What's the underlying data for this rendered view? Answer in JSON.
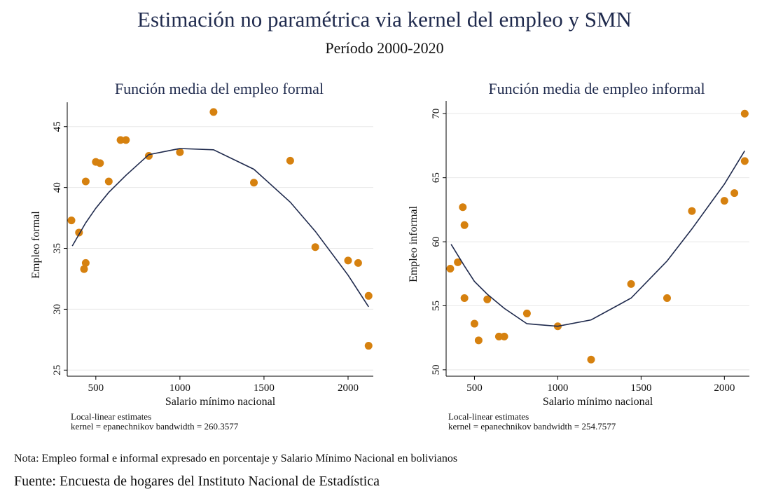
{
  "header": {
    "title": "Estimación no paramétrica via kernel del empleo y SMN",
    "subtitle": "Período 2000-2020"
  },
  "footer": {
    "note": "Nota: Empleo formal e informal expresado en porcentaje y Salario Mínimo Nacional en bolivianos",
    "source": "Fuente: Encuesta de hogares del Instituto Nacional de Estadística"
  },
  "colors": {
    "points": "#d6810f",
    "fit_line": "#1f2a4d",
    "grid": "#e8e8e8",
    "axis": "#000000"
  },
  "chart_data": [
    {
      "type": "scatter",
      "title": "Función media del empleo formal",
      "xlabel": "Salario mínimo nacional",
      "ylabel": "Empleo formal",
      "xlim": [
        330,
        2150
      ],
      "ylim": [
        24.5,
        47
      ],
      "xticks": [
        500,
        1000,
        1500,
        2000
      ],
      "xtick_labels": [
        "500",
        "1000",
        "1500",
        "2000"
      ],
      "yticks": [
        25,
        30,
        35,
        40,
        45
      ],
      "ytick_labels": [
        "25",
        "30",
        "35",
        "40",
        "45"
      ],
      "grid": true,
      "notes": [
        "Local-linear estimates",
        "kernel = epanechnikov bandwidth = 260.3577"
      ],
      "points": [
        {
          "x": 355,
          "y": 37.3
        },
        {
          "x": 400,
          "y": 36.3
        },
        {
          "x": 430,
          "y": 33.3
        },
        {
          "x": 440,
          "y": 33.8
        },
        {
          "x": 440,
          "y": 40.5
        },
        {
          "x": 500,
          "y": 42.1
        },
        {
          "x": 525,
          "y": 42.0
        },
        {
          "x": 577,
          "y": 40.5
        },
        {
          "x": 647,
          "y": 43.9
        },
        {
          "x": 679,
          "y": 43.9
        },
        {
          "x": 815,
          "y": 42.6
        },
        {
          "x": 1000,
          "y": 42.9
        },
        {
          "x": 1200,
          "y": 46.2
        },
        {
          "x": 1440,
          "y": 40.4
        },
        {
          "x": 1656,
          "y": 42.2
        },
        {
          "x": 1805,
          "y": 35.1
        },
        {
          "x": 2000,
          "y": 34.0
        },
        {
          "x": 2060,
          "y": 33.8
        },
        {
          "x": 2122,
          "y": 31.1
        },
        {
          "x": 2122,
          "y": 27.0
        }
      ],
      "fit": [
        {
          "x": 360,
          "y": 35.2
        },
        {
          "x": 440,
          "y": 37.1
        },
        {
          "x": 500,
          "y": 38.3
        },
        {
          "x": 577,
          "y": 39.6
        },
        {
          "x": 679,
          "y": 41.0
        },
        {
          "x": 815,
          "y": 42.7
        },
        {
          "x": 1000,
          "y": 43.2
        },
        {
          "x": 1200,
          "y": 43.1
        },
        {
          "x": 1440,
          "y": 41.5
        },
        {
          "x": 1656,
          "y": 38.8
        },
        {
          "x": 1805,
          "y": 36.4
        },
        {
          "x": 2000,
          "y": 32.8
        },
        {
          "x": 2122,
          "y": 30.2
        }
      ]
    },
    {
      "type": "scatter",
      "title": "Función media de empleo informal",
      "xlabel": "Salario mínimo nacional",
      "ylabel": "Empleo informal",
      "xlim": [
        330,
        2150
      ],
      "ylim": [
        49.5,
        71
      ],
      "xticks": [
        500,
        1000,
        1500,
        2000
      ],
      "xtick_labels": [
        "500",
        "1000",
        "1500",
        "2000"
      ],
      "yticks": [
        50,
        55,
        60,
        65,
        70
      ],
      "ytick_labels": [
        "50",
        "55",
        "60",
        "65",
        "70"
      ],
      "grid": true,
      "notes": [
        "Local-linear estimates",
        "kernel = epanechnikov bandwidth = 254.7577"
      ],
      "points": [
        {
          "x": 355,
          "y": 57.9
        },
        {
          "x": 400,
          "y": 58.4
        },
        {
          "x": 430,
          "y": 62.7
        },
        {
          "x": 440,
          "y": 61.3
        },
        {
          "x": 440,
          "y": 55.6
        },
        {
          "x": 500,
          "y": 53.6
        },
        {
          "x": 525,
          "y": 52.3
        },
        {
          "x": 577,
          "y": 55.5
        },
        {
          "x": 647,
          "y": 52.6
        },
        {
          "x": 679,
          "y": 52.6
        },
        {
          "x": 815,
          "y": 54.4
        },
        {
          "x": 1000,
          "y": 53.4
        },
        {
          "x": 1200,
          "y": 50.8
        },
        {
          "x": 1440,
          "y": 56.7
        },
        {
          "x": 1656,
          "y": 55.6
        },
        {
          "x": 1805,
          "y": 62.4
        },
        {
          "x": 2000,
          "y": 63.2
        },
        {
          "x": 2060,
          "y": 63.8
        },
        {
          "x": 2122,
          "y": 70.0
        },
        {
          "x": 2122,
          "y": 66.3
        }
      ],
      "fit": [
        {
          "x": 360,
          "y": 59.8
        },
        {
          "x": 440,
          "y": 58.1
        },
        {
          "x": 500,
          "y": 56.9
        },
        {
          "x": 577,
          "y": 55.9
        },
        {
          "x": 679,
          "y": 54.8
        },
        {
          "x": 815,
          "y": 53.6
        },
        {
          "x": 1000,
          "y": 53.4
        },
        {
          "x": 1200,
          "y": 53.9
        },
        {
          "x": 1440,
          "y": 55.6
        },
        {
          "x": 1656,
          "y": 58.5
        },
        {
          "x": 1805,
          "y": 61.0
        },
        {
          "x": 2000,
          "y": 64.5
        },
        {
          "x": 2122,
          "y": 67.1
        }
      ]
    }
  ]
}
